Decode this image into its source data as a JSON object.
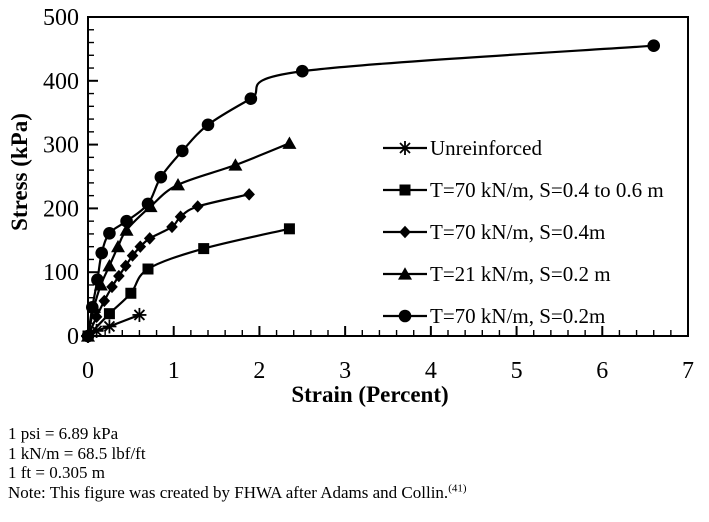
{
  "figure": {
    "background": "#ffffff",
    "ink_color": "#000000"
  },
  "chart_data": {
    "type": "line",
    "title": "",
    "xlabel": "Strain (Percent)",
    "ylabel": "Stress (kPa)",
    "xlim": [
      0,
      7
    ],
    "ylim": [
      0,
      500
    ],
    "xticks": [
      0,
      1,
      2,
      3,
      4,
      5,
      6,
      7
    ],
    "yticks": [
      0,
      100,
      200,
      300,
      400,
      500
    ],
    "x_minor_step": 0.2,
    "y_minor_step": 20,
    "grid": false,
    "legend_position": "inside-right",
    "series": [
      {
        "name": "Unreinforced",
        "marker": "asterisk",
        "color": "#000000",
        "points": [
          [
            0,
            0
          ],
          [
            0.1,
            8
          ],
          [
            0.25,
            15
          ],
          [
            0.6,
            33
          ]
        ]
      },
      {
        "name": "T=70 kN/m, S=0.4 to 0.6 m",
        "marker": "square",
        "color": "#000000",
        "points": [
          [
            0,
            0
          ],
          [
            0.25,
            35
          ],
          [
            0.5,
            67
          ],
          [
            0.7,
            105
          ],
          [
            1.35,
            137
          ],
          [
            2.35,
            168
          ]
        ]
      },
      {
        "name": "T=70 kN/m, S=0.4m",
        "marker": "diamond",
        "color": "#000000",
        "points": [
          [
            0,
            0
          ],
          [
            0.1,
            30
          ],
          [
            0.19,
            55
          ],
          [
            0.28,
            77
          ],
          [
            0.36,
            94
          ],
          [
            0.44,
            110
          ],
          [
            0.52,
            126
          ],
          [
            0.61,
            140
          ],
          [
            0.72,
            153
          ],
          [
            0.98,
            171
          ],
          [
            1.08,
            187
          ],
          [
            1.28,
            203
          ],
          [
            1.88,
            222
          ]
        ]
      },
      {
        "name": "T=21 kN/m, S=0.2 m",
        "marker": "triangle",
        "color": "#000000",
        "points": [
          [
            0,
            0
          ],
          [
            0.07,
            45
          ],
          [
            0.15,
            80
          ],
          [
            0.25,
            110
          ],
          [
            0.35,
            140
          ],
          [
            0.45,
            166
          ],
          [
            0.73,
            203
          ],
          [
            1.05,
            237
          ],
          [
            1.72,
            268
          ],
          [
            2.35,
            302
          ]
        ]
      },
      {
        "name": "T=70 kN/m, S=0.2m",
        "marker": "circle",
        "color": "#000000",
        "points": [
          [
            0,
            0
          ],
          [
            0.05,
            45
          ],
          [
            0.11,
            88
          ],
          [
            0.16,
            130
          ],
          [
            0.25,
            161
          ],
          [
            0.45,
            180
          ],
          [
            0.7,
            207
          ],
          [
            0.85,
            249
          ],
          [
            1.1,
            290
          ],
          [
            1.4,
            331
          ],
          [
            1.9,
            372
          ],
          [
            2.5,
            415
          ],
          [
            6.6,
            455
          ]
        ]
      }
    ]
  },
  "notes": {
    "lines": [
      "1 psi = 6.89 kPa",
      "1 kN/m = 68.5 lbf/ft",
      "1 ft = 0.305 m"
    ],
    "citation_text": "Note: This figure was created by FHWA after Adams and Collin.",
    "citation_ref": "(41)"
  }
}
